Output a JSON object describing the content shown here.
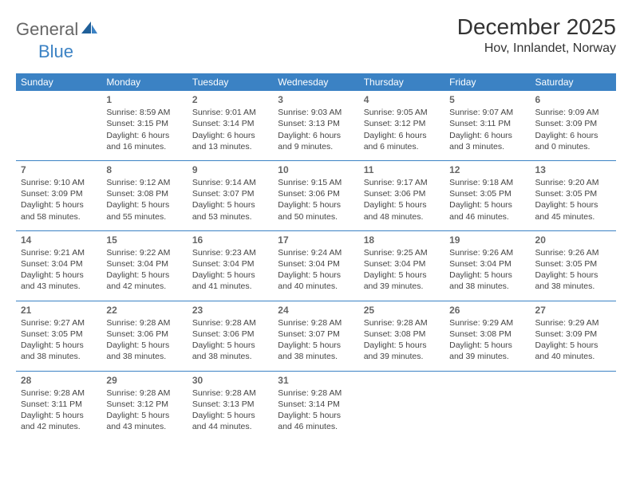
{
  "logo": {
    "general": "General",
    "blue": "Blue"
  },
  "title": "December 2025",
  "location": "Hov, Innlandet, Norway",
  "colors": {
    "header_bg": "#3b82c4",
    "header_text": "#ffffff",
    "divider": "#3b82c4",
    "text": "#444444",
    "daynum": "#666666"
  },
  "weekdays": [
    "Sunday",
    "Monday",
    "Tuesday",
    "Wednesday",
    "Thursday",
    "Friday",
    "Saturday"
  ],
  "weeks": [
    [
      null,
      {
        "n": "1",
        "sr": "Sunrise: 8:59 AM",
        "ss": "Sunset: 3:15 PM",
        "dl": "Daylight: 6 hours and 16 minutes."
      },
      {
        "n": "2",
        "sr": "Sunrise: 9:01 AM",
        "ss": "Sunset: 3:14 PM",
        "dl": "Daylight: 6 hours and 13 minutes."
      },
      {
        "n": "3",
        "sr": "Sunrise: 9:03 AM",
        "ss": "Sunset: 3:13 PM",
        "dl": "Daylight: 6 hours and 9 minutes."
      },
      {
        "n": "4",
        "sr": "Sunrise: 9:05 AM",
        "ss": "Sunset: 3:12 PM",
        "dl": "Daylight: 6 hours and 6 minutes."
      },
      {
        "n": "5",
        "sr": "Sunrise: 9:07 AM",
        "ss": "Sunset: 3:11 PM",
        "dl": "Daylight: 6 hours and 3 minutes."
      },
      {
        "n": "6",
        "sr": "Sunrise: 9:09 AM",
        "ss": "Sunset: 3:09 PM",
        "dl": "Daylight: 6 hours and 0 minutes."
      }
    ],
    [
      {
        "n": "7",
        "sr": "Sunrise: 9:10 AM",
        "ss": "Sunset: 3:09 PM",
        "dl": "Daylight: 5 hours and 58 minutes."
      },
      {
        "n": "8",
        "sr": "Sunrise: 9:12 AM",
        "ss": "Sunset: 3:08 PM",
        "dl": "Daylight: 5 hours and 55 minutes."
      },
      {
        "n": "9",
        "sr": "Sunrise: 9:14 AM",
        "ss": "Sunset: 3:07 PM",
        "dl": "Daylight: 5 hours and 53 minutes."
      },
      {
        "n": "10",
        "sr": "Sunrise: 9:15 AM",
        "ss": "Sunset: 3:06 PM",
        "dl": "Daylight: 5 hours and 50 minutes."
      },
      {
        "n": "11",
        "sr": "Sunrise: 9:17 AM",
        "ss": "Sunset: 3:06 PM",
        "dl": "Daylight: 5 hours and 48 minutes."
      },
      {
        "n": "12",
        "sr": "Sunrise: 9:18 AM",
        "ss": "Sunset: 3:05 PM",
        "dl": "Daylight: 5 hours and 46 minutes."
      },
      {
        "n": "13",
        "sr": "Sunrise: 9:20 AM",
        "ss": "Sunset: 3:05 PM",
        "dl": "Daylight: 5 hours and 45 minutes."
      }
    ],
    [
      {
        "n": "14",
        "sr": "Sunrise: 9:21 AM",
        "ss": "Sunset: 3:04 PM",
        "dl": "Daylight: 5 hours and 43 minutes."
      },
      {
        "n": "15",
        "sr": "Sunrise: 9:22 AM",
        "ss": "Sunset: 3:04 PM",
        "dl": "Daylight: 5 hours and 42 minutes."
      },
      {
        "n": "16",
        "sr": "Sunrise: 9:23 AM",
        "ss": "Sunset: 3:04 PM",
        "dl": "Daylight: 5 hours and 41 minutes."
      },
      {
        "n": "17",
        "sr": "Sunrise: 9:24 AM",
        "ss": "Sunset: 3:04 PM",
        "dl": "Daylight: 5 hours and 40 minutes."
      },
      {
        "n": "18",
        "sr": "Sunrise: 9:25 AM",
        "ss": "Sunset: 3:04 PM",
        "dl": "Daylight: 5 hours and 39 minutes."
      },
      {
        "n": "19",
        "sr": "Sunrise: 9:26 AM",
        "ss": "Sunset: 3:04 PM",
        "dl": "Daylight: 5 hours and 38 minutes."
      },
      {
        "n": "20",
        "sr": "Sunrise: 9:26 AM",
        "ss": "Sunset: 3:05 PM",
        "dl": "Daylight: 5 hours and 38 minutes."
      }
    ],
    [
      {
        "n": "21",
        "sr": "Sunrise: 9:27 AM",
        "ss": "Sunset: 3:05 PM",
        "dl": "Daylight: 5 hours and 38 minutes."
      },
      {
        "n": "22",
        "sr": "Sunrise: 9:28 AM",
        "ss": "Sunset: 3:06 PM",
        "dl": "Daylight: 5 hours and 38 minutes."
      },
      {
        "n": "23",
        "sr": "Sunrise: 9:28 AM",
        "ss": "Sunset: 3:06 PM",
        "dl": "Daylight: 5 hours and 38 minutes."
      },
      {
        "n": "24",
        "sr": "Sunrise: 9:28 AM",
        "ss": "Sunset: 3:07 PM",
        "dl": "Daylight: 5 hours and 38 minutes."
      },
      {
        "n": "25",
        "sr": "Sunrise: 9:28 AM",
        "ss": "Sunset: 3:08 PM",
        "dl": "Daylight: 5 hours and 39 minutes."
      },
      {
        "n": "26",
        "sr": "Sunrise: 9:29 AM",
        "ss": "Sunset: 3:08 PM",
        "dl": "Daylight: 5 hours and 39 minutes."
      },
      {
        "n": "27",
        "sr": "Sunrise: 9:29 AM",
        "ss": "Sunset: 3:09 PM",
        "dl": "Daylight: 5 hours and 40 minutes."
      }
    ],
    [
      {
        "n": "28",
        "sr": "Sunrise: 9:28 AM",
        "ss": "Sunset: 3:11 PM",
        "dl": "Daylight: 5 hours and 42 minutes."
      },
      {
        "n": "29",
        "sr": "Sunrise: 9:28 AM",
        "ss": "Sunset: 3:12 PM",
        "dl": "Daylight: 5 hours and 43 minutes."
      },
      {
        "n": "30",
        "sr": "Sunrise: 9:28 AM",
        "ss": "Sunset: 3:13 PM",
        "dl": "Daylight: 5 hours and 44 minutes."
      },
      {
        "n": "31",
        "sr": "Sunrise: 9:28 AM",
        "ss": "Sunset: 3:14 PM",
        "dl": "Daylight: 5 hours and 46 minutes."
      },
      null,
      null,
      null
    ]
  ]
}
